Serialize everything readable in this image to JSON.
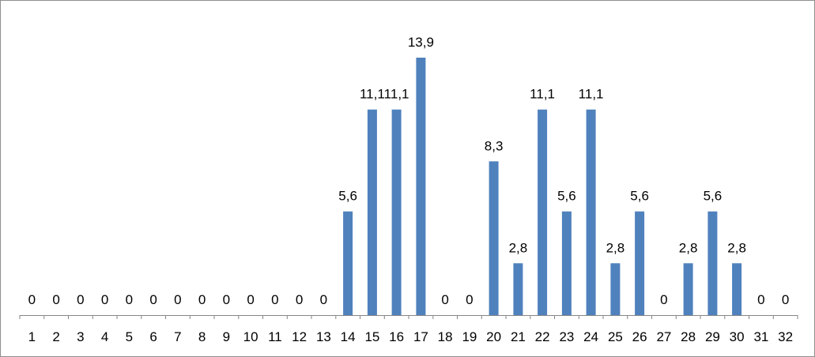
{
  "chart_data": {
    "type": "bar",
    "categories": [
      "1",
      "2",
      "3",
      "4",
      "5",
      "6",
      "7",
      "8",
      "9",
      "10",
      "11",
      "12",
      "13",
      "14",
      "15",
      "16",
      "17",
      "18",
      "19",
      "20",
      "21",
      "22",
      "23",
      "24",
      "25",
      "26",
      "27",
      "28",
      "29",
      "30",
      "31",
      "32"
    ],
    "values": [
      0,
      0,
      0,
      0,
      0,
      0,
      0,
      0,
      0,
      0,
      0,
      0,
      0,
      5.6,
      11.1,
      11.1,
      13.9,
      0,
      0,
      8.3,
      2.8,
      11.1,
      5.6,
      11.1,
      2.8,
      5.6,
      0,
      2.8,
      5.6,
      2.8,
      0,
      0
    ],
    "data_labels": [
      "0",
      "0",
      "0",
      "0",
      "0",
      "0",
      "0",
      "0",
      "0",
      "0",
      "0",
      "0",
      "0",
      "5,6",
      "11,1",
      "11,1",
      "13,9",
      "0",
      "0",
      "8,3",
      "2,8",
      "11,1",
      "5,6",
      "11,1",
      "2,8",
      "5,6",
      "0",
      "2,8",
      "5,6",
      "2,8",
      "0",
      "0"
    ],
    "title": "",
    "xlabel": "",
    "ylabel": "",
    "ylim": [
      0,
      13.9
    ],
    "grid": false,
    "legend": "none",
    "bar_color": "#4F81BD",
    "axis_color": "#868686",
    "frame_color": "#8E8E8E"
  }
}
